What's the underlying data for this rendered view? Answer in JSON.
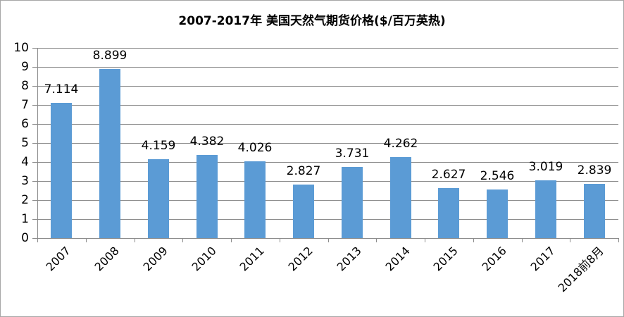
{
  "chart_data": {
    "type": "bar",
    "title": "2007-2017年 美国天然气期货价格($/百万英热)",
    "categories": [
      "2007",
      "2008",
      "2009",
      "2010",
      "2011",
      "2012",
      "2013",
      "2014",
      "2015",
      "2016",
      "2017",
      "2018前8月"
    ],
    "values": [
      7.114,
      8.899,
      4.159,
      4.382,
      4.026,
      2.827,
      3.731,
      4.262,
      2.627,
      2.546,
      3.019,
      2.839
    ],
    "value_labels": [
      "7.114",
      "8.899",
      "4.159",
      "4.382",
      "4.026",
      "2.827",
      "3.731",
      "4.262",
      "2.627",
      "2.546",
      "3.019",
      "2.839"
    ],
    "xlabel": "",
    "ylabel": "",
    "ylim": [
      0,
      10
    ],
    "ytick_step": 1,
    "ytick_labels": [
      "0",
      "1",
      "2",
      "3",
      "4",
      "5",
      "6",
      "7",
      "8",
      "9",
      "10"
    ],
    "grid": "horizontal",
    "legend": "none",
    "data_labels": "outside-end",
    "xtick_rotation_deg": 45,
    "colors": {
      "bar_fill": "#5b9bd5",
      "grid_line": "#8c8c8c",
      "axis_line": "#8c8c8c",
      "text": "#000000",
      "frame_border": "#a6a6a6",
      "background": "#ffffff"
    }
  }
}
